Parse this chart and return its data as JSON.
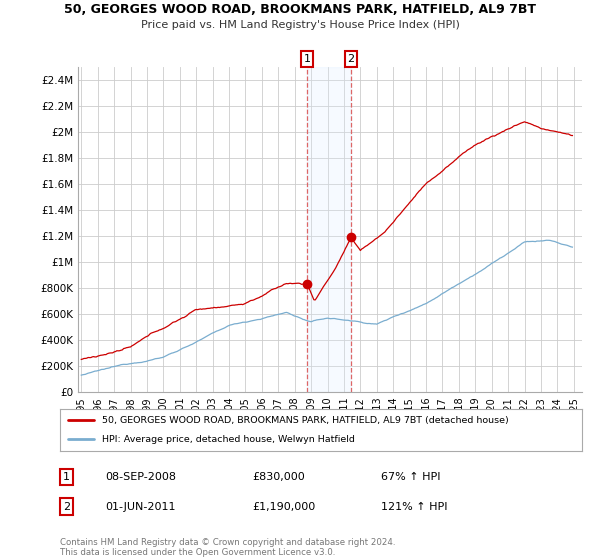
{
  "title": "50, GEORGES WOOD ROAD, BROOKMANS PARK, HATFIELD, AL9 7BT",
  "subtitle": "Price paid vs. HM Land Registry's House Price Index (HPI)",
  "legend_line1": "50, GEORGES WOOD ROAD, BROOKMANS PARK, HATFIELD, AL9 7BT (detached house)",
  "legend_line2": "HPI: Average price, detached house, Welwyn Hatfield",
  "annotation1_label": "1",
  "annotation1_date": "08-SEP-2008",
  "annotation1_price": "£830,000",
  "annotation1_hpi": "67% ↑ HPI",
  "annotation2_label": "2",
  "annotation2_date": "01-JUN-2011",
  "annotation2_price": "£1,190,000",
  "annotation2_hpi": "121% ↑ HPI",
  "copyright": "Contains HM Land Registry data © Crown copyright and database right 2024.\nThis data is licensed under the Open Government Licence v3.0.",
  "red_color": "#cc0000",
  "blue_color": "#7aadcf",
  "background_color": "#ffffff",
  "grid_color": "#cccccc",
  "shade_color": "#ddeeff",
  "ylim": [
    0,
    2500000
  ],
  "yticks": [
    0,
    200000,
    400000,
    600000,
    800000,
    1000000,
    1200000,
    1400000,
    1600000,
    1800000,
    2000000,
    2200000,
    2400000
  ],
  "ytick_labels": [
    "£0",
    "£200K",
    "£400K",
    "£600K",
    "£800K",
    "£1M",
    "£1.2M",
    "£1.4M",
    "£1.6M",
    "£1.8M",
    "£2M",
    "£2.2M",
    "£2.4M"
  ],
  "sale1_year": 2008.75,
  "sale1_price": 830000,
  "sale2_year": 2011.42,
  "sale2_price": 1190000,
  "xlim_left": 1994.8,
  "xlim_right": 2025.5
}
